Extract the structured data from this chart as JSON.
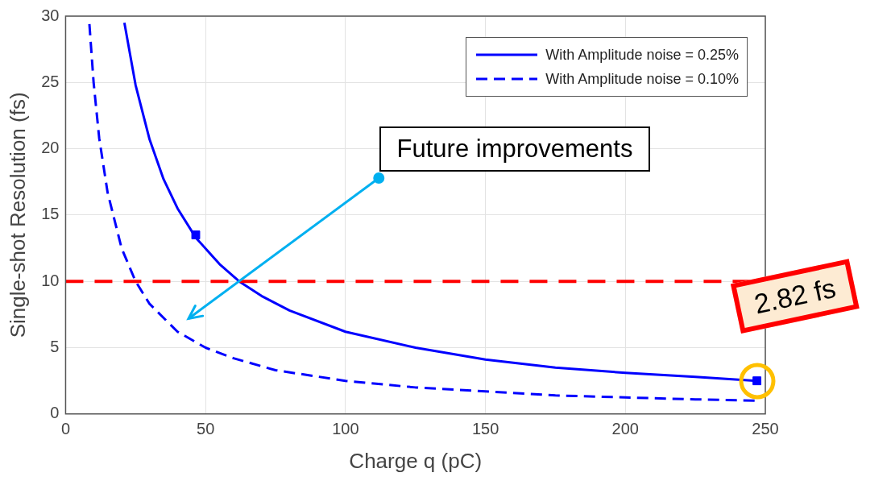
{
  "chart_data": {
    "type": "line",
    "xlabel": "Charge q (pC)",
    "ylabel": "Single-shot Resolution (fs)",
    "xlim": [
      0,
      250
    ],
    "xticks": [
      0,
      50,
      100,
      150,
      200,
      250
    ],
    "ylim": [
      0,
      30
    ],
    "yticks": [
      0,
      5,
      10,
      15,
      20,
      25,
      30
    ],
    "grid": true,
    "legend": "top right",
    "series": [
      {
        "name": "With Amplitude noise = 0.25%",
        "color": "#0000ff",
        "line_style": "solid",
        "x": [
          21,
          25,
          30,
          35,
          40,
          46.5,
          55,
          62,
          70,
          80,
          100,
          125,
          150,
          175,
          200,
          225,
          247
        ],
        "values": [
          29.5,
          24.8,
          20.7,
          17.7,
          15.5,
          13.3,
          11.3,
          10,
          8.9,
          7.8,
          6.2,
          5.0,
          4.1,
          3.5,
          3.1,
          2.8,
          2.5
        ]
      },
      {
        "name": "With Amplitude noise = 0.10%",
        "color": "#0000ff",
        "line_style": "dashed",
        "x": [
          8.5,
          10,
          12,
          15,
          20,
          25,
          30,
          40,
          50,
          60,
          75,
          100,
          125,
          150,
          175,
          200,
          225,
          247
        ],
        "values": [
          29.4,
          25,
          20.8,
          16.7,
          12.5,
          10,
          8.3,
          6.2,
          5,
          4.2,
          3.3,
          2.5,
          2,
          1.7,
          1.4,
          1.25,
          1.1,
          1.0
        ]
      },
      {
        "type": "scatter",
        "marker": "square",
        "color": "#0000ff",
        "x": [
          46.5,
          247
        ],
        "values": [
          13.5,
          2.5
        ]
      }
    ],
    "ref_lines": [
      {
        "axis": "y",
        "value": 10,
        "color": "#ff0000",
        "line_style": "dashed"
      }
    ],
    "annotations": [
      {
        "text": "Future improvements",
        "x": 112,
        "y": 17.8
      },
      {
        "text": "2.82 fs",
        "x": 247,
        "y": 2.5
      }
    ]
  }
}
